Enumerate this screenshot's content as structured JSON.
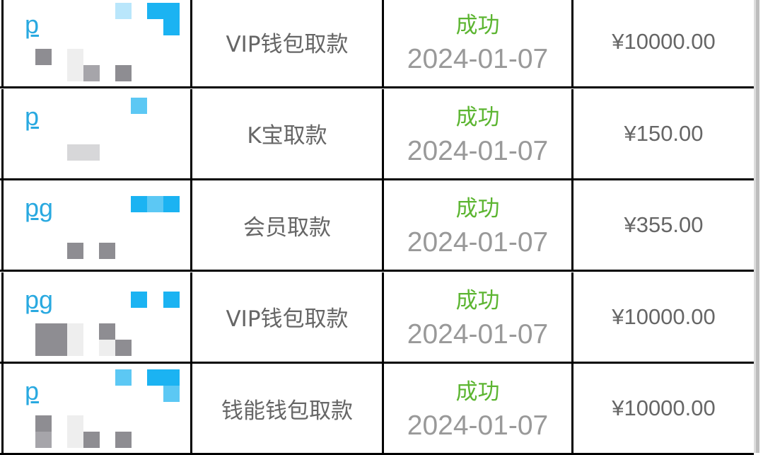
{
  "rows": [
    {
      "user": "p",
      "type": "VIP钱包取款",
      "status": "成功",
      "date": "2024-01-07",
      "amount": "¥10000.00"
    },
    {
      "user": "p",
      "type": "K宝取款",
      "status": "成功",
      "date": "2024-01-07",
      "amount": "¥150.00"
    },
    {
      "user": "pg",
      "type": "会员取款",
      "status": "成功",
      "date": "2024-01-07",
      "amount": "¥355.00"
    },
    {
      "user": "pg",
      "type": "VIP钱包取款",
      "status": "成功",
      "date": "2024-01-07",
      "amount": "¥10000.00"
    },
    {
      "user": "p",
      "type": "钱能钱包取款",
      "status": "成功",
      "date": "2024-01-07",
      "amount": "¥10000.00"
    }
  ],
  "colors": {
    "status_success": "#5cb531",
    "user_link": "#29a9e0",
    "text": "#666666",
    "date": "#999999"
  }
}
